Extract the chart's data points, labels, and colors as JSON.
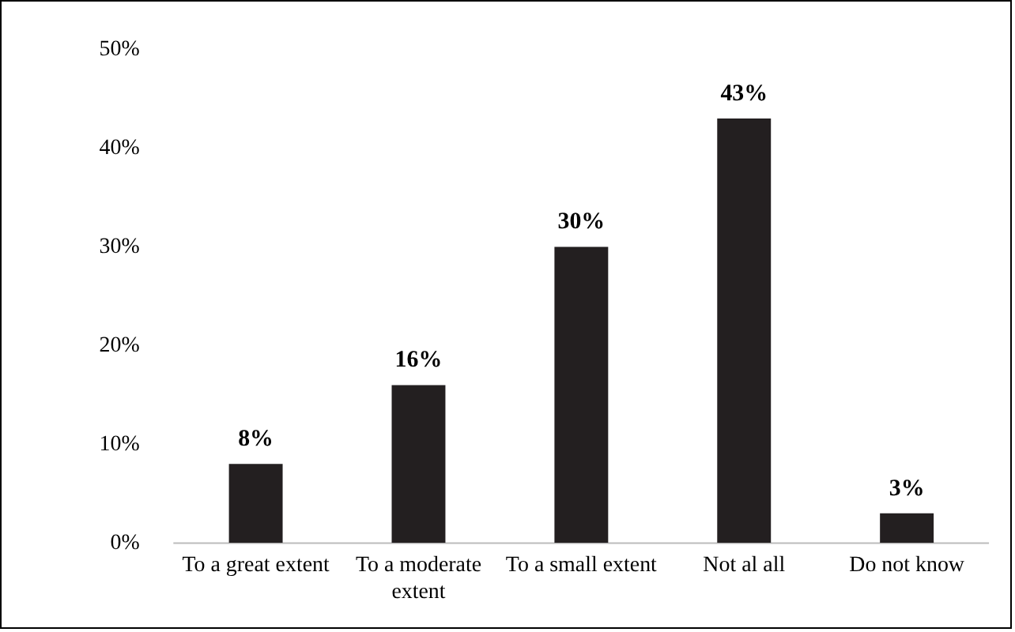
{
  "chart_data": {
    "type": "bar",
    "categories": [
      "To a great extent",
      "To a moderate extent",
      "To a small extent",
      "Not al all",
      "Do not know"
    ],
    "values": [
      8,
      16,
      30,
      43,
      3
    ],
    "value_labels": [
      "8%",
      "16%",
      "30%",
      "43%",
      "3%"
    ],
    "color": "#231f20",
    "ylim": [
      0,
      50
    ],
    "yticks": [
      {
        "value": 0,
        "label": "0%"
      },
      {
        "value": 10,
        "label": "10%"
      },
      {
        "value": 20,
        "label": "20%"
      },
      {
        "value": 30,
        "label": "30%"
      },
      {
        "value": 40,
        "label": "40%"
      },
      {
        "value": 50,
        "label": "50%"
      }
    ],
    "grid": false,
    "legend": false
  }
}
